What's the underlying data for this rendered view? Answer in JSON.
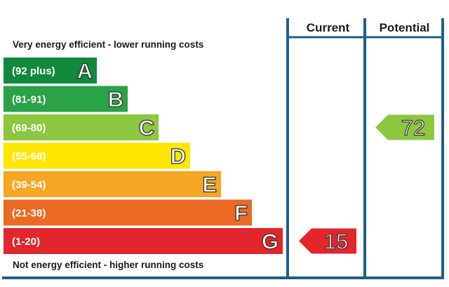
{
  "chart_data": {
    "type": "bar",
    "top_caption": "Very energy efficient - lower running costs",
    "bottom_caption": "Not energy efficient - higher running costs",
    "columns": [
      "Current",
      "Potential"
    ],
    "bands": [
      {
        "range": "(92 plus)",
        "letter": "A",
        "color": "#0f8a3c"
      },
      {
        "range": "(81-91)",
        "letter": "B",
        "color": "#2aa245"
      },
      {
        "range": "(69-80)",
        "letter": "C",
        "color": "#8dc63f"
      },
      {
        "range": "(55-68)",
        "letter": "D",
        "color": "#ffe600"
      },
      {
        "range": "(39-54)",
        "letter": "E",
        "color": "#f5a623"
      },
      {
        "range": "(21-38)",
        "letter": "F",
        "color": "#ea6a24"
      },
      {
        "range": "(1-20)",
        "letter": "G",
        "color": "#e3262c"
      }
    ],
    "current": {
      "value": 15,
      "band": "G",
      "color": "#e3262c"
    },
    "potential": {
      "value": 72,
      "band": "C",
      "color": "#8dc63f"
    },
    "frame_color": "#1d5f8a"
  }
}
